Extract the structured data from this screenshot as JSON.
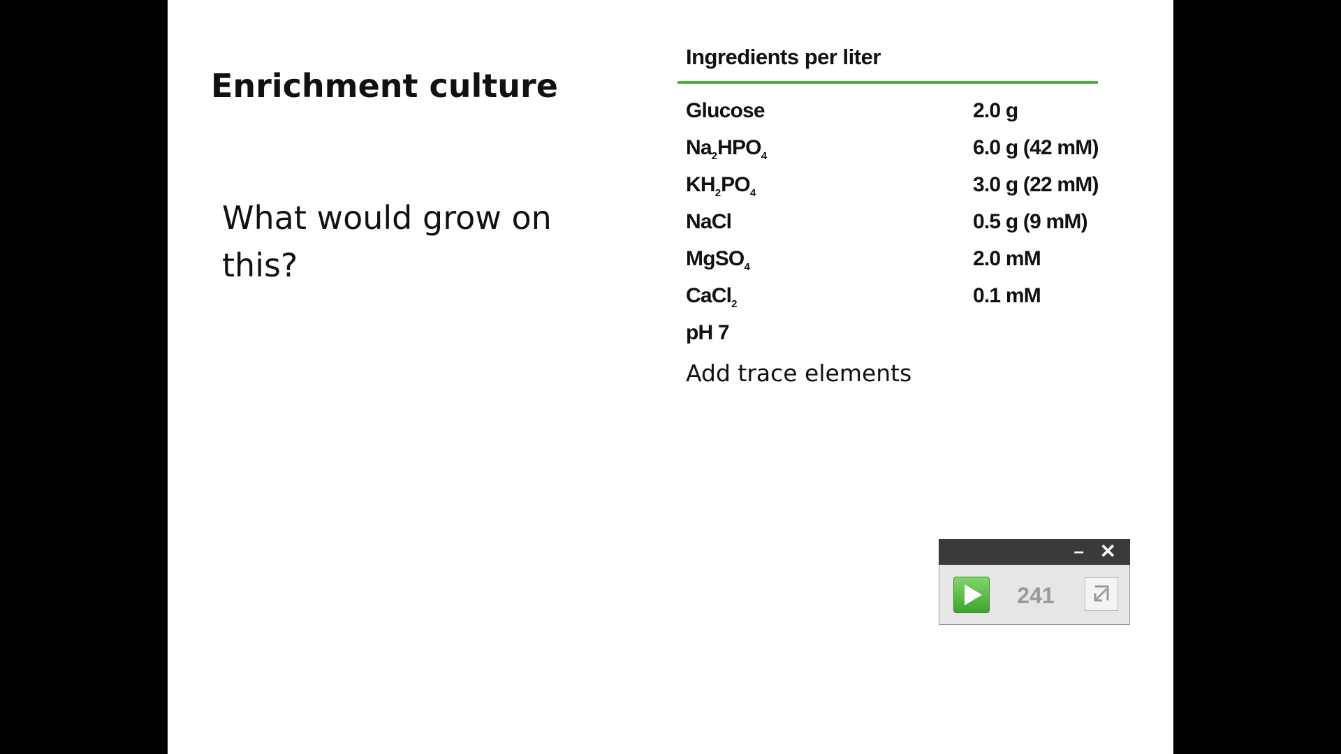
{
  "slide": {
    "title": "Enrichment culture",
    "question": "What would grow on this?",
    "table": {
      "header": "Ingredients per liter",
      "rows": [
        {
          "name": "Glucose",
          "amount": "2.0 g"
        },
        {
          "name": "Na",
          "sub1": "2",
          "name2": "HPO",
          "sub2": "4",
          "amount": "6.0 g (42 mM)"
        },
        {
          "name": "KH",
          "sub1": "2",
          "name2": "PO",
          "sub2": "4",
          "amount": "3.0 g (22 mM)"
        },
        {
          "name": "NaCl",
          "amount": "0.5 g (9 mM)"
        },
        {
          "name": "MgSO",
          "sub1": "4",
          "amount": "2.0 mM"
        },
        {
          "name": "CaCl",
          "sub1": "2",
          "amount": "0.1 mM"
        },
        {
          "name": "pH 7",
          "amount": ""
        }
      ],
      "note": "Add trace elements"
    }
  },
  "widget": {
    "minimize_label": "–",
    "close_label": "✕",
    "counter": "241",
    "play_icon": "play-icon",
    "expand_icon": "expand-icon"
  },
  "colors": {
    "rule": "#4caf3c",
    "play": "#4caf3c",
    "widget_bar": "#3a3a3a"
  }
}
